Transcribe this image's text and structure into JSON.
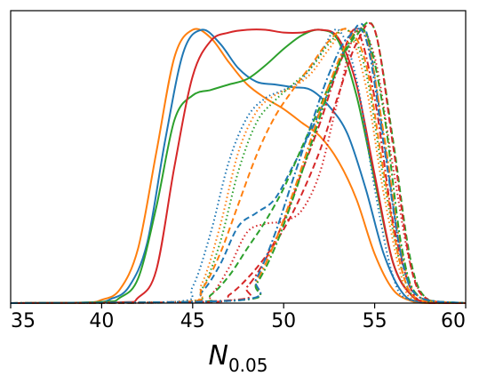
{
  "chart_data": {
    "type": "line",
    "title": "",
    "xlabel": "N",
    "xlabel_subscript": "0.05",
    "ylabel": "",
    "xlim": [
      35,
      60
    ],
    "ylim": [
      0,
      1.07
    ],
    "x_ticks": [
      35,
      40,
      45,
      50,
      55,
      60
    ],
    "x_tick_labels": [
      "35",
      "40",
      "45",
      "50",
      "55",
      "60"
    ],
    "y_ticks_visible": false,
    "grid": false,
    "legend": "none",
    "series": [
      {
        "color": "#ff7f0e",
        "style": "solid",
        "x": [
          39,
          40,
          41,
          42,
          43,
          44,
          45,
          46,
          47,
          48,
          49,
          50,
          51,
          52,
          53,
          54,
          55,
          56,
          57,
          58
        ],
        "y": [
          0.002,
          0.012,
          0.05,
          0.2,
          0.55,
          0.9,
          1.0,
          0.97,
          0.88,
          0.8,
          0.75,
          0.71,
          0.66,
          0.61,
          0.52,
          0.38,
          0.18,
          0.05,
          0.008,
          0.0
        ]
      },
      {
        "color": "#1f77b4",
        "style": "solid",
        "x": [
          39.5,
          40.5,
          41.5,
          42.5,
          43.5,
          44.5,
          45.5,
          46.5,
          47.5,
          48.5,
          49.5,
          50.5,
          51.5,
          52.5,
          53.5,
          54.5,
          55.5,
          56.5,
          57.5
        ],
        "y": [
          0.003,
          0.015,
          0.06,
          0.22,
          0.6,
          0.92,
          1.0,
          0.95,
          0.86,
          0.81,
          0.8,
          0.79,
          0.78,
          0.72,
          0.62,
          0.42,
          0.18,
          0.04,
          0.005
        ]
      },
      {
        "color": "#2ca02c",
        "style": "solid",
        "x": [
          40,
          41,
          42,
          43,
          44,
          45,
          46,
          47,
          48,
          49,
          50,
          51,
          52,
          53,
          54,
          55,
          56,
          57,
          58
        ],
        "y": [
          0.004,
          0.02,
          0.09,
          0.35,
          0.67,
          0.76,
          0.78,
          0.8,
          0.82,
          0.87,
          0.93,
          0.98,
          1.0,
          0.96,
          0.76,
          0.45,
          0.15,
          0.03,
          0.003
        ]
      },
      {
        "color": "#d62728",
        "style": "solid",
        "x": [
          41,
          42,
          43,
          44,
          45,
          46,
          47,
          48,
          49,
          50,
          51,
          52,
          53,
          54,
          55,
          56,
          57,
          58
        ],
        "y": [
          0.003,
          0.02,
          0.12,
          0.5,
          0.83,
          0.96,
          0.99,
          1.0,
          1.0,
          0.99,
          0.99,
          1.0,
          0.97,
          0.8,
          0.47,
          0.15,
          0.03,
          0.004
        ]
      },
      {
        "color": "#1f77b4",
        "style": "dotted",
        "x": [
          44,
          45,
          46,
          47,
          48,
          49,
          50,
          51,
          52,
          53,
          54,
          55,
          56,
          57
        ],
        "y": [
          0.005,
          0.06,
          0.26,
          0.52,
          0.68,
          0.75,
          0.78,
          0.82,
          0.91,
          1.0,
          0.82,
          0.42,
          0.1,
          0.01
        ]
      },
      {
        "color": "#ff7f0e",
        "style": "dotted",
        "x": [
          44.5,
          45.5,
          46.5,
          47.5,
          48.5,
          49.5,
          50.5,
          51.5,
          52.5,
          53.5,
          54.5,
          55.5,
          56.5,
          57.3
        ],
        "y": [
          0.005,
          0.07,
          0.28,
          0.55,
          0.7,
          0.76,
          0.79,
          0.84,
          0.93,
          1.0,
          0.8,
          0.4,
          0.09,
          0.01
        ]
      },
      {
        "color": "#2ca02c",
        "style": "dotted",
        "x": [
          44.5,
          45.5,
          46.5,
          47.5,
          48.5,
          49.5,
          50.5,
          51.5,
          52.5,
          53.5,
          54.5,
          55.5,
          56.5,
          57.5
        ],
        "y": [
          0.004,
          0.05,
          0.22,
          0.48,
          0.66,
          0.74,
          0.8,
          0.86,
          0.95,
          1.0,
          0.85,
          0.45,
          0.12,
          0.01
        ]
      },
      {
        "color": "#d62728",
        "style": "dotted",
        "x": [
          45,
          46,
          47,
          48,
          49,
          50,
          51,
          52,
          53,
          54,
          55,
          56,
          57,
          58
        ],
        "y": [
          0.003,
          0.03,
          0.13,
          0.26,
          0.29,
          0.3,
          0.34,
          0.48,
          0.75,
          1.0,
          0.9,
          0.5,
          0.13,
          0.01
        ]
      },
      {
        "color": "#1f77b4",
        "style": "dashed",
        "x": [
          44.5,
          45.5,
          46.5,
          47.5,
          48.5,
          49.5,
          50.5,
          51.5,
          52.5,
          53.5,
          54.5,
          55.5,
          56.5,
          57.5
        ],
        "y": [
          0.004,
          0.04,
          0.14,
          0.28,
          0.33,
          0.38,
          0.5,
          0.63,
          0.78,
          0.95,
          1.0,
          0.6,
          0.16,
          0.02
        ]
      },
      {
        "color": "#ff7f0e",
        "style": "dashed",
        "x": [
          44.5,
          45.5,
          46.5,
          47.5,
          48.5,
          49.5,
          50.5,
          51.5,
          52.5,
          53.5,
          54.5,
          55.5,
          56.5,
          57.5
        ],
        "y": [
          0.004,
          0.05,
          0.18,
          0.36,
          0.54,
          0.68,
          0.78,
          0.87,
          0.96,
          1.0,
          0.88,
          0.48,
          0.12,
          0.01
        ]
      },
      {
        "color": "#2ca02c",
        "style": "dashed",
        "x": [
          45,
          46,
          47,
          48,
          49,
          50,
          51,
          52,
          53,
          54,
          55,
          56,
          57,
          58
        ],
        "y": [
          0.003,
          0.03,
          0.1,
          0.2,
          0.3,
          0.42,
          0.57,
          0.72,
          0.87,
          0.98,
          1.0,
          0.6,
          0.15,
          0.01
        ]
      },
      {
        "color": "#d62728",
        "style": "dashed",
        "x": [
          46,
          47,
          48,
          49,
          50,
          51,
          52,
          53,
          54,
          55,
          56,
          57,
          58
        ],
        "y": [
          0.004,
          0.03,
          0.09,
          0.17,
          0.27,
          0.4,
          0.56,
          0.76,
          0.95,
          1.0,
          0.58,
          0.13,
          0.01
        ]
      },
      {
        "color": "#d62728",
        "style": "dashdot",
        "x": [
          47,
          48,
          49,
          50,
          51,
          52,
          53,
          54,
          55,
          56,
          57,
          58
        ],
        "y": [
          0.01,
          0.06,
          0.16,
          0.3,
          0.48,
          0.66,
          0.86,
          1.0,
          0.75,
          0.3,
          0.05,
          0.0
        ]
      },
      {
        "color": "#ff7f0e",
        "style": "dashdot",
        "x": [
          47.5,
          48.5,
          49.5,
          50.5,
          51.5,
          52.5,
          53.5,
          54.5,
          55.5,
          56.5,
          57.5
        ],
        "y": [
          0.01,
          0.08,
          0.22,
          0.4,
          0.6,
          0.8,
          0.95,
          0.98,
          0.62,
          0.18,
          0.02
        ]
      },
      {
        "color": "#2ca02c",
        "style": "dashdot",
        "x": [
          47.5,
          48.5,
          49.5,
          50.5,
          51.5,
          52.5,
          53.5,
          54.5,
          55.5,
          56.5,
          57.5
        ],
        "y": [
          0.01,
          0.07,
          0.2,
          0.38,
          0.58,
          0.78,
          0.94,
          0.99,
          0.7,
          0.2,
          0.02
        ]
      },
      {
        "color": "#1f77b4",
        "style": "dashdot",
        "x": [
          47.5,
          48.5,
          49.5,
          50.5,
          51.5,
          52.5,
          53.5,
          54.5,
          55.5,
          56.5,
          57.5
        ],
        "y": [
          0.01,
          0.09,
          0.25,
          0.45,
          0.65,
          0.84,
          0.97,
          0.97,
          0.58,
          0.16,
          0.02
        ]
      }
    ]
  }
}
